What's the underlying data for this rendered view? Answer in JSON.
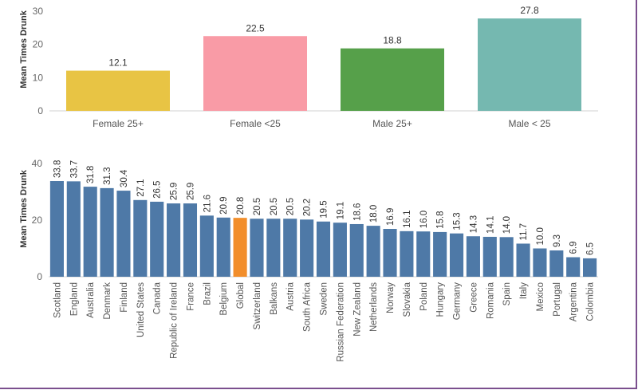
{
  "chart_data": [
    {
      "type": "bar",
      "ylabel": "Mean Times Drunk",
      "ylim": [
        0,
        30
      ],
      "yticks": [
        0,
        10,
        20,
        30
      ],
      "categories": [
        "Female 25+",
        "Female <25",
        "Male 25+",
        "Male < 25"
      ],
      "values": [
        12.1,
        22.5,
        18.8,
        27.8
      ],
      "value_labels": [
        "12.1",
        "22.5",
        "18.8",
        "27.8"
      ],
      "colors": [
        "#e8c444",
        "#f99ba6",
        "#56a04a",
        "#75b8b0"
      ]
    },
    {
      "type": "bar",
      "ylabel": "Mean Times Drunk",
      "ylim": [
        0,
        40
      ],
      "yticks": [
        0,
        20,
        40
      ],
      "categories": [
        "Scotland",
        "England",
        "Australia",
        "Denmark",
        "Finland",
        "United States",
        "Canada",
        "Republic of Ireland",
        "France",
        "Brazil",
        "Belgium",
        "Global",
        "Switzerland",
        "Balkans",
        "Austria",
        "South Africa",
        "Sweden",
        "Russian Federation",
        "New Zealand",
        "Netherlands",
        "Norway",
        "Slovakia",
        "Poland",
        "Hungary",
        "Germany",
        "Greece",
        "Romania",
        "Spain",
        "Italy",
        "Mexico",
        "Portugal",
        "Argentina",
        "Colombia"
      ],
      "values": [
        33.8,
        33.7,
        31.8,
        31.3,
        30.4,
        27.1,
        26.5,
        25.9,
        25.9,
        21.6,
        20.9,
        20.8,
        20.5,
        20.5,
        20.5,
        20.2,
        19.5,
        19.1,
        18.6,
        18.0,
        16.9,
        16.1,
        16.0,
        15.8,
        15.3,
        14.3,
        14.1,
        14.0,
        11.7,
        10.0,
        9.3,
        6.9,
        6.5
      ],
      "value_labels": [
        "33.8",
        "33.7",
        "31.8",
        "31.3",
        "30.4",
        "27.1",
        "26.5",
        "25.9",
        "25.9",
        "21.6",
        "20.9",
        "20.8",
        "20.5",
        "20.5",
        "20.5",
        "20.2",
        "19.5",
        "19.1",
        "18.6",
        "18.0",
        "16.9",
        "16.1",
        "16.0",
        "15.8",
        "15.3",
        "14.3",
        "14.1",
        "14.0",
        "11.7",
        "10.0",
        "9.3",
        "6.9",
        "6.5"
      ],
      "bar_color": "#4e79a7",
      "highlight_category": "Global",
      "highlight_color": "#f28e2b"
    }
  ]
}
